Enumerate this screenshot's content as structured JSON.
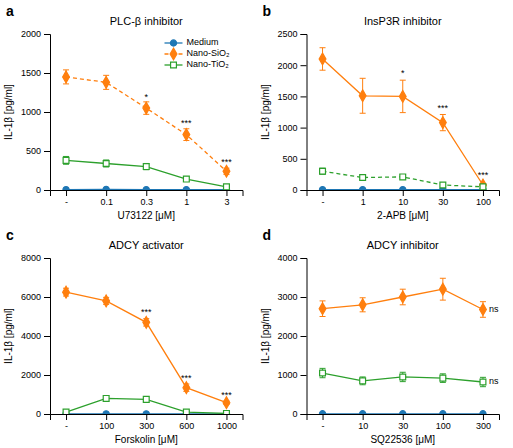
{
  "chart_data": [
    {
      "type": "line",
      "panel_label": "a",
      "title": "PLC-β inhibitor",
      "x_label": "U73122 [μM]",
      "y_label": "IL-1β [pg/ml]",
      "categories": [
        "-",
        "0.1",
        "0.3",
        "1",
        "3"
      ],
      "ylim": [
        0,
        2000
      ],
      "yticks": [
        0,
        500,
        1000,
        1500,
        2000
      ],
      "grid": false,
      "legend": "upper right",
      "series": [
        {
          "name": "Medium",
          "marker": "filled-circle",
          "line_style": "solid",
          "values": [
            5,
            8,
            5,
            5,
            5
          ],
          "errors": [
            3,
            3,
            3,
            3,
            3
          ]
        },
        {
          "name": "Nano-SiO₂",
          "marker": "filled-diamond",
          "line_style": "dashed",
          "values": [
            1450,
            1380,
            1050,
            710,
            240
          ],
          "errors": [
            90,
            90,
            80,
            75,
            40
          ]
        },
        {
          "name": "Nano-TiO₂",
          "marker": "open-square",
          "line_style": "solid",
          "values": [
            380,
            340,
            300,
            140,
            40
          ],
          "errors": [
            50,
            45,
            40,
            25,
            15
          ]
        }
      ],
      "annotations": [
        {
          "text": "*",
          "x": 2,
          "y": 1130
        },
        {
          "text": "***",
          "x": 3,
          "y": 800
        },
        {
          "text": "***",
          "x": 4,
          "y": 295
        }
      ]
    },
    {
      "type": "line",
      "panel_label": "b",
      "title": "InsP3R inhibitor",
      "x_label": "2-APB [μM]",
      "y_label": "IL-1β [pg/ml]",
      "categories": [
        "-",
        "1",
        "10",
        "30",
        "100"
      ],
      "ylim": [
        0,
        2500
      ],
      "yticks": [
        0,
        500,
        1000,
        1500,
        2000,
        2500
      ],
      "grid": false,
      "series": [
        {
          "name": "Medium",
          "marker": "filled-circle",
          "line_style": "solid",
          "values": [
            5,
            5,
            5,
            5,
            5
          ],
          "errors": [
            3,
            3,
            3,
            3,
            3
          ]
        },
        {
          "name": "Nano-SiO₂",
          "marker": "filled-diamond",
          "line_style": "solid",
          "values": [
            2100,
            1510,
            1500,
            1080,
            80
          ],
          "errors": [
            180,
            280,
            260,
            130,
            25
          ]
        },
        {
          "name": "Nano-TiO₂",
          "marker": "open-square",
          "line_style": "dashed",
          "values": [
            300,
            200,
            210,
            80,
            50
          ],
          "errors": [
            50,
            30,
            30,
            18,
            18
          ]
        }
      ],
      "annotations": [
        {
          "text": "*",
          "x": 2,
          "y": 1800
        },
        {
          "text": "***",
          "x": 3,
          "y": 1240
        },
        {
          "text": "***",
          "x": 4,
          "y": 160
        }
      ]
    },
    {
      "type": "line",
      "panel_label": "c",
      "title": "ADCY activator",
      "x_label": "Forskolin [μM]",
      "y_label": "IL-1β [pg/ml]",
      "categories": [
        "-",
        "100",
        "300",
        "600",
        "1000"
      ],
      "ylim": [
        0,
        8000
      ],
      "yticks": [
        0,
        2000,
        4000,
        6000,
        8000
      ],
      "grid": false,
      "series": [
        {
          "name": "Medium",
          "marker": "filled-circle",
          "line_style": "solid",
          "values": [
            8,
            8,
            8,
            8,
            8
          ],
          "errors": [
            3,
            3,
            3,
            3,
            3
          ]
        },
        {
          "name": "Nano-SiO₂",
          "marker": "filled-diamond",
          "line_style": "solid",
          "values": [
            6250,
            5800,
            4700,
            1350,
            580
          ],
          "errors": [
            200,
            180,
            190,
            190,
            90
          ]
        },
        {
          "name": "Nano-TiO₂",
          "marker": "open-square",
          "line_style": "solid",
          "values": [
            100,
            800,
            750,
            100,
            30
          ],
          "errors": [
            20,
            140,
            140,
            18,
            8
          ]
        }
      ],
      "annotations": [
        {
          "text": "***",
          "x": 2,
          "y": 4950
        },
        {
          "text": "***",
          "x": 3,
          "y": 1580
        },
        {
          "text": "***",
          "x": 4,
          "y": 730
        }
      ]
    },
    {
      "type": "line",
      "panel_label": "d",
      "title": "ADCY inhibitor",
      "x_label": "SQ22536 [μM]",
      "y_label": "IL-1β [pg/ml]",
      "categories": [
        "-",
        "10",
        "30",
        "100",
        "300"
      ],
      "ylim": [
        0,
        4000
      ],
      "yticks": [
        0,
        1000,
        2000,
        3000,
        4000
      ],
      "grid": false,
      "series": [
        {
          "name": "Medium",
          "marker": "filled-circle",
          "line_style": "solid",
          "values": [
            5,
            5,
            5,
            5,
            5
          ],
          "errors": [
            3,
            3,
            3,
            3,
            3
          ]
        },
        {
          "name": "Nano-SiO₂",
          "marker": "filled-diamond",
          "line_style": "solid",
          "values": [
            2700,
            2800,
            3000,
            3200,
            2680
          ],
          "errors": [
            200,
            180,
            200,
            280,
            200
          ]
        },
        {
          "name": "Nano-TiO₂",
          "marker": "open-square",
          "line_style": "solid",
          "values": [
            1050,
            850,
            950,
            920,
            820
          ],
          "errors": [
            120,
            100,
            120,
            110,
            120
          ]
        }
      ],
      "annotations": [
        {
          "text": "ns",
          "x": 4.15,
          "y": 2680,
          "anchor": "left"
        },
        {
          "text": "ns",
          "x": 4.15,
          "y": 820,
          "anchor": "left"
        }
      ]
    }
  ]
}
